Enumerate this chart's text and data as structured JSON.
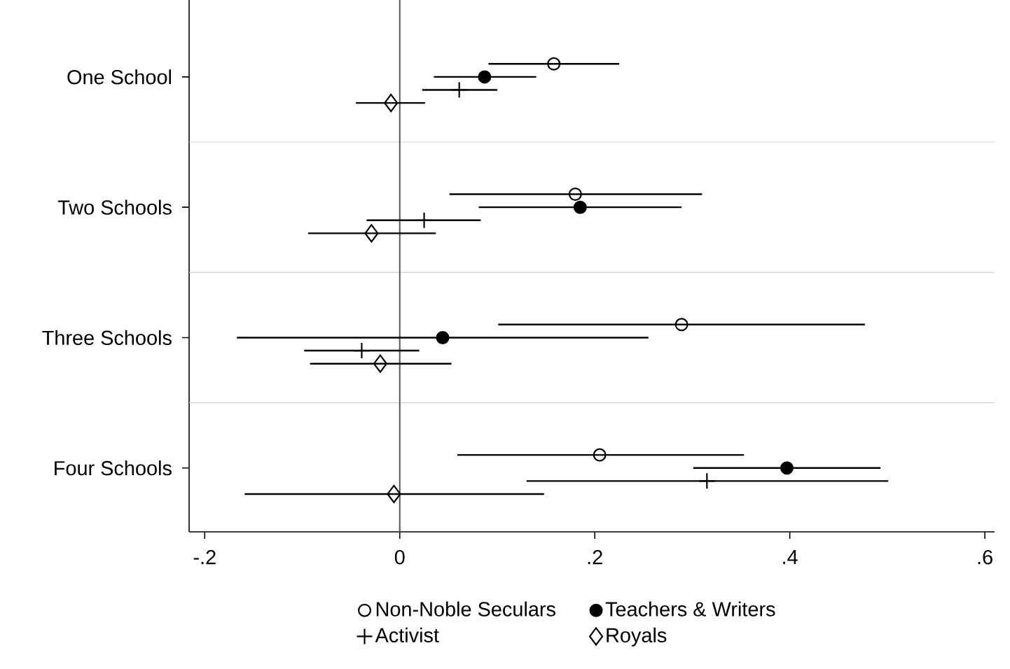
{
  "chart_data": {
    "type": "scatter",
    "orientation": "horizontal",
    "categories": [
      "One School",
      "Two Schools",
      "Three Schools",
      "Four Schools"
    ],
    "series": [
      {
        "name": "Non-Noble Seculars",
        "color": "#000000",
        "marker": "circle",
        "values": [
          0.158,
          0.18,
          0.289,
          0.205
        ],
        "errors": [
          [
            0.091,
            0.225
          ],
          [
            0.051,
            0.31
          ],
          [
            0.101,
            0.477
          ],
          [
            0.059,
            0.353
          ]
        ]
      },
      {
        "name": "Teachers & Writers",
        "color": "#000000",
        "marker": "circle",
        "values": [
          0.087,
          0.185,
          0.044,
          0.397
        ],
        "errors": [
          [
            0.035,
            0.14
          ],
          [
            0.081,
            0.289
          ],
          [
            -0.167,
            0.255
          ],
          [
            0.301,
            0.493
          ]
        ]
      },
      {
        "name": "Activist",
        "color": "#000000",
        "marker": "cross",
        "values": [
          0.061,
          0.025,
          -0.039,
          0.315
        ],
        "errors": [
          [
            0.023,
            0.1
          ],
          [
            -0.034,
            0.083
          ],
          [
            -0.098,
            0.02
          ],
          [
            0.13,
            0.501
          ]
        ]
      },
      {
        "name": "Royals",
        "color": "#000000",
        "marker": "diamond",
        "values": [
          -0.009,
          -0.029,
          -0.02,
          -0.006
        ],
        "errors": [
          [
            -0.045,
            0.026
          ],
          [
            -0.094,
            0.037
          ],
          [
            -0.092,
            0.053
          ],
          [
            -0.159,
            0.148
          ]
        ]
      }
    ],
    "xlim": [
      -0.216,
      0.61
    ],
    "xticks": [
      {
        "value": -0.2,
        "label": "-.2"
      },
      0,
      {
        "value": 0.2,
        "label": ".2"
      },
      {
        "value": 0.4,
        "label": ".4"
      },
      {
        "value": 0.6,
        "label": ".6"
      }
    ],
    "ref_lines": [
      {
        "axis": "x",
        "value": 0,
        "color": "#555555"
      }
    ],
    "grid": "y",
    "legend": "bottom"
  }
}
